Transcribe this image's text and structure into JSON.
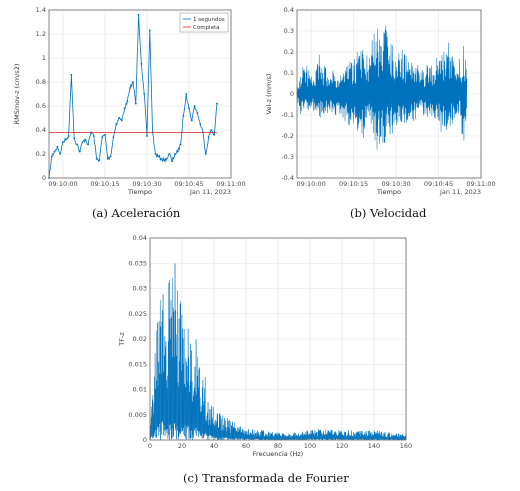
{
  "colors": {
    "series": "#0072bd",
    "reference": "#d7191c",
    "grid": "#e3e3e3",
    "axis": "#555555"
  },
  "captions": {
    "a": "(a) Aceleración",
    "b": "(b) Velocidad",
    "c": "(c) Transformada de Fourier"
  },
  "chart_data": [
    {
      "id": "a",
      "type": "line",
      "xlabel": "Tiempo",
      "ylabel": "RMSmov-z (cm/s2)",
      "date_label": "Jan 11, 2023",
      "xticks": [
        "09:10:00",
        "09:10:15",
        "09:10:30",
        "09:10:45",
        "09:11:00"
      ],
      "xlim": [
        "09:09:55",
        "09:11:00"
      ],
      "ylim": [
        0,
        1.4
      ],
      "yticks": [
        "0",
        "0.2",
        "0.4",
        "0.6",
        "0.8",
        "1",
        "1.2",
        "1.4"
      ],
      "grid": true,
      "legend": {
        "position": "top-right",
        "entries": [
          "1 segundos",
          "Completa"
        ]
      },
      "series": [
        {
          "name": "1 segundos",
          "x": [
            "09:09:55",
            "09:09:56",
            "09:09:57",
            "09:09:58",
            "09:09:59",
            "09:10:00",
            "09:10:01",
            "09:10:02",
            "09:10:03",
            "09:10:04",
            "09:10:05",
            "09:10:06",
            "09:10:07",
            "09:10:08",
            "09:10:09",
            "09:10:10",
            "09:10:11",
            "09:10:12",
            "09:10:13",
            "09:10:14",
            "09:10:15",
            "09:10:16",
            "09:10:17",
            "09:10:18",
            "09:10:19",
            "09:10:20",
            "09:10:21",
            "09:10:22",
            "09:10:23",
            "09:10:24",
            "09:10:25",
            "09:10:26",
            "09:10:27",
            "09:10:28",
            "09:10:29",
            "09:10:30",
            "09:10:31",
            "09:10:32",
            "09:10:33",
            "09:10:34",
            "09:10:35",
            "09:10:36",
            "09:10:37",
            "09:10:38",
            "09:10:39",
            "09:10:40",
            "09:10:41",
            "09:10:42",
            "09:10:43",
            "09:10:44",
            "09:10:45",
            "09:10:46",
            "09:10:47",
            "09:10:48",
            "09:10:49",
            "09:10:50",
            "09:10:51",
            "09:10:52",
            "09:10:53",
            "09:10:54",
            "09:10:55"
          ],
          "values": [
            0.0,
            0.18,
            0.22,
            0.26,
            0.2,
            0.3,
            0.32,
            0.35,
            0.86,
            0.33,
            0.28,
            0.22,
            0.3,
            0.32,
            0.28,
            0.38,
            0.35,
            0.16,
            0.15,
            0.34,
            0.36,
            0.16,
            0.18,
            0.34,
            0.45,
            0.5,
            0.48,
            0.58,
            0.64,
            0.75,
            0.8,
            0.62,
            1.36,
            0.95,
            0.7,
            0.35,
            1.23,
            0.38,
            0.2,
            0.18,
            0.16,
            0.15,
            0.16,
            0.2,
            0.14,
            0.2,
            0.22,
            0.28,
            0.52,
            0.7,
            0.58,
            0.48,
            0.6,
            0.54,
            0.45,
            0.38,
            0.2,
            0.34,
            0.4,
            0.36,
            0.62
          ]
        },
        {
          "name": "Completa",
          "x": [
            "09:09:55",
            "09:10:55"
          ],
          "values": [
            0.38,
            0.38
          ]
        }
      ]
    },
    {
      "id": "b",
      "type": "line",
      "xlabel": "Tiempo",
      "ylabel": "Vel-z (mm/s)",
      "date_label": "Jan 11, 2023",
      "xticks": [
        "09:10:00",
        "09:10:15",
        "09:10:30",
        "09:10:45",
        "09:11:00"
      ],
      "xlim": [
        "09:09:55",
        "09:11:00"
      ],
      "ylim": [
        -0.4,
        0.4
      ],
      "yticks": [
        "-0.4",
        "-0.3",
        "-0.2",
        "-0.1",
        "0",
        "0.1",
        "0.2",
        "0.3",
        "0.4"
      ],
      "grid": true,
      "series": [
        {
          "name": "",
          "x_start": "09:09:55",
          "x_end": "09:10:55",
          "upper": [
            0.05,
            0.1,
            0.18,
            0.12,
            0.08,
            0.1,
            0.22,
            0.15,
            0.12,
            0.1,
            0.12,
            0.09,
            0.1,
            0.13,
            0.15,
            0.18,
            0.2,
            0.21,
            0.25,
            0.18,
            0.26,
            0.3,
            0.32,
            0.28,
            0.34,
            0.25,
            0.3,
            0.27,
            0.22,
            0.2,
            0.18,
            0.16,
            0.2,
            0.12,
            0.12,
            0.14,
            0.15,
            0.12,
            0.18,
            0.22,
            0.2,
            0.25,
            0.2,
            0.15,
            0.17,
            0.26,
            0.2
          ],
          "lower": [
            -0.05,
            -0.1,
            -0.08,
            -0.12,
            -0.07,
            -0.09,
            -0.14,
            -0.1,
            -0.11,
            -0.09,
            -0.12,
            -0.08,
            -0.1,
            -0.13,
            -0.15,
            -0.16,
            -0.2,
            -0.15,
            -0.22,
            -0.12,
            -0.18,
            -0.24,
            -0.32,
            -0.26,
            -0.24,
            -0.22,
            -0.2,
            -0.18,
            -0.16,
            -0.15,
            -0.14,
            -0.12,
            -0.15,
            -0.1,
            -0.12,
            -0.1,
            -0.14,
            -0.1,
            -0.15,
            -0.18,
            -0.16,
            -0.2,
            -0.15,
            -0.12,
            -0.1,
            -0.28,
            -0.15
          ]
        }
      ]
    },
    {
      "id": "c",
      "type": "line",
      "xlabel": "Frecuencia (Hz)",
      "ylabel": "TF-z",
      "xticks": [
        "0",
        "20",
        "40",
        "60",
        "80",
        "100",
        "120",
        "140",
        "160"
      ],
      "xlim": [
        0,
        160
      ],
      "ylim": [
        0,
        0.04
      ],
      "yticks": [
        "0",
        "0.005",
        "0.01",
        "0.015",
        "0.02",
        "0.025",
        "0.03",
        "0.035",
        "0.04"
      ],
      "grid": true,
      "series": [
        {
          "name": "",
          "envelope_x": [
            0,
            2,
            4,
            6,
            8,
            10,
            12,
            14,
            16,
            18,
            20,
            22,
            24,
            26,
            28,
            30,
            32,
            34,
            36,
            38,
            40,
            45,
            50,
            55,
            60,
            65,
            70,
            80,
            90,
            100,
            110,
            120,
            130,
            140,
            150,
            160
          ],
          "envelope_y": [
            0.001,
            0.012,
            0.027,
            0.028,
            0.032,
            0.02,
            0.035,
            0.033,
            0.036,
            0.028,
            0.03,
            0.025,
            0.025,
            0.02,
            0.022,
            0.018,
            0.012,
            0.014,
            0.008,
            0.008,
            0.006,
            0.005,
            0.004,
            0.003,
            0.0025,
            0.002,
            0.002,
            0.0015,
            0.0015,
            0.002,
            0.0022,
            0.002,
            0.0018,
            0.002,
            0.0015,
            0.0012
          ]
        }
      ]
    }
  ]
}
